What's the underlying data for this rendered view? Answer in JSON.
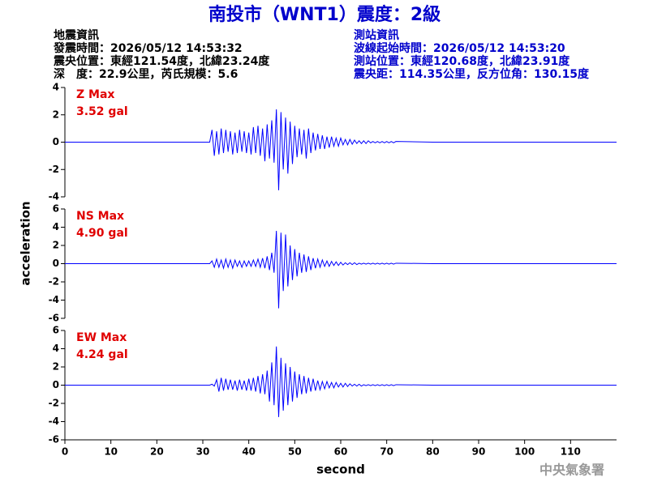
{
  "header": {
    "title": "南投市（WNT1）震度：2級",
    "left": [
      "地震資訊",
      "發震時間：2026/05/12 14:53:32",
      "震央位置：東經121.54度，北緯23.24度",
      "深　度：22.9公里，芮氏規模：5.6"
    ],
    "right": [
      "測站資訊",
      "波線起始時間：2026/05/12 14:53:20",
      "測站位置：東經120.68度，北緯23.91度",
      "震央距：114.35公里，反方位角：130.15度"
    ]
  },
  "footer": "中央氣象署",
  "chart_data": [
    {
      "type": "line",
      "label": "Z Max",
      "max_label": "3.52 gal",
      "color": "#0000ff",
      "xlim": [
        0,
        120
      ],
      "ylim": [
        -4,
        4
      ],
      "yticks": [
        -4,
        -2,
        0,
        2,
        4
      ],
      "x": [
        0,
        31.5,
        32,
        32.5,
        33,
        33.5,
        34,
        34.5,
        35,
        35.5,
        36,
        36.5,
        37,
        37.5,
        38,
        38.5,
        39,
        39.5,
        40,
        40.5,
        41,
        41.5,
        42,
        42.5,
        43,
        43.5,
        44,
        44.5,
        45,
        45.5,
        46,
        46.5,
        47,
        47.5,
        48,
        48.5,
        49,
        49.5,
        50,
        50.5,
        51,
        51.5,
        52,
        52.5,
        53,
        53.5,
        54,
        54.5,
        55,
        55.5,
        56,
        56.5,
        57,
        57.5,
        58,
        58.5,
        59,
        59.5,
        60,
        60.5,
        61,
        61.5,
        62,
        62.5,
        63,
        63.5,
        64,
        64.5,
        65,
        65.5,
        66,
        66.5,
        67,
        67.5,
        68,
        68.5,
        69,
        69.5,
        70,
        70.5,
        71,
        71.5,
        72,
        80,
        90,
        100,
        110,
        120
      ],
      "values": [
        0,
        0,
        0.9,
        -1.0,
        0.8,
        -0.9,
        1.0,
        -0.8,
        0.9,
        -0.7,
        0.8,
        -0.9,
        0.7,
        -0.8,
        0.9,
        -0.7,
        0.8,
        -0.8,
        0.7,
        -0.9,
        1.1,
        -0.8,
        1.2,
        -1.0,
        1.0,
        -1.4,
        1.3,
        -1.2,
        1.6,
        -1.5,
        2.4,
        -3.52,
        2.2,
        -2.0,
        1.8,
        -2.3,
        1.5,
        -1.6,
        1.2,
        -1.1,
        1.0,
        -0.9,
        0.9,
        -1.2,
        1.0,
        -0.8,
        0.7,
        -0.6,
        0.6,
        -0.5,
        0.5,
        -0.5,
        0.4,
        -0.4,
        0.4,
        -0.3,
        0.3,
        -0.3,
        0.3,
        -0.2,
        0.2,
        -0.2,
        0.2,
        -0.15,
        0.15,
        -0.1,
        0.1,
        -0.1,
        0.1,
        -0.1,
        0.1,
        -0.05,
        0.05,
        -0.05,
        0.05,
        -0.05,
        0.05,
        -0.05,
        0.05,
        -0.05,
        0.05,
        -0.05,
        0.05,
        0,
        0,
        0,
        0,
        0
      ]
    },
    {
      "type": "line",
      "label": "NS Max",
      "max_label": "4.90 gal",
      "color": "#0000ff",
      "ylabel": "acceleration",
      "xlim": [
        0,
        120
      ],
      "ylim": [
        -6,
        6
      ],
      "yticks": [
        -6,
        -4,
        -2,
        0,
        2,
        4,
        6
      ],
      "x": [
        0,
        31.5,
        32,
        32.5,
        33,
        33.5,
        34,
        34.5,
        35,
        35.5,
        36,
        36.5,
        37,
        37.5,
        38,
        38.5,
        39,
        39.5,
        40,
        40.5,
        41,
        41.5,
        42,
        42.5,
        43,
        43.5,
        44,
        44.5,
        45,
        45.5,
        46,
        46.5,
        47,
        47.5,
        48,
        48.5,
        49,
        49.5,
        50,
        50.5,
        51,
        51.5,
        52,
        52.5,
        53,
        53.5,
        54,
        54.5,
        55,
        55.5,
        56,
        56.5,
        57,
        57.5,
        58,
        58.5,
        59,
        59.5,
        60,
        60.5,
        61,
        61.5,
        62,
        62.5,
        63,
        63.5,
        64,
        64.5,
        65,
        65.5,
        66,
        66.5,
        67,
        67.5,
        68,
        68.5,
        69,
        69.5,
        70,
        70.5,
        71,
        71.5,
        72,
        80,
        90,
        100,
        110,
        120
      ],
      "values": [
        0,
        0,
        0.3,
        -0.4,
        0.5,
        -0.4,
        0.4,
        -0.5,
        0.5,
        -0.4,
        0.4,
        -0.5,
        0.4,
        -0.3,
        0.3,
        -0.4,
        0.3,
        -0.3,
        0.3,
        -0.3,
        0.4,
        -0.3,
        0.5,
        -0.4,
        0.6,
        -0.5,
        0.8,
        -0.7,
        1.2,
        -1.0,
        3.6,
        -4.9,
        3.4,
        -3.0,
        3.2,
        -2.5,
        2.0,
        -1.8,
        1.6,
        -1.4,
        1.2,
        -1.0,
        1.0,
        -0.9,
        0.8,
        -0.7,
        0.6,
        -0.5,
        0.5,
        -0.4,
        0.4,
        -0.3,
        0.3,
        -0.3,
        0.25,
        -0.2,
        0.2,
        -0.2,
        0.15,
        -0.15,
        0.1,
        -0.1,
        0.1,
        -0.1,
        0.1,
        -0.1,
        0.05,
        -0.05,
        0.05,
        -0.05,
        0.05,
        -0.05,
        0.05,
        -0.05,
        0.05,
        -0.05,
        0.05,
        -0.05,
        0.05,
        -0.05,
        0.05,
        -0.05,
        0.05,
        0,
        0,
        0,
        0,
        0
      ]
    },
    {
      "type": "line",
      "label": "EW Max",
      "max_label": "4.24 gal",
      "color": "#0000ff",
      "xlabel": "second",
      "xlim": [
        0,
        120
      ],
      "xticks": [
        0,
        10,
        20,
        30,
        40,
        50,
        60,
        70,
        80,
        90,
        100,
        110
      ],
      "ylim": [
        -6,
        6
      ],
      "yticks": [
        -6,
        -4,
        -2,
        0,
        2,
        4,
        6
      ],
      "x": [
        0,
        31.5,
        32,
        32.5,
        33,
        33.5,
        34,
        34.5,
        35,
        35.5,
        36,
        36.5,
        37,
        37.5,
        38,
        38.5,
        39,
        39.5,
        40,
        40.5,
        41,
        41.5,
        42,
        42.5,
        43,
        43.5,
        44,
        44.5,
        45,
        45.5,
        46,
        46.5,
        47,
        47.5,
        48,
        48.5,
        49,
        49.5,
        50,
        50.5,
        51,
        51.5,
        52,
        52.5,
        53,
        53.5,
        54,
        54.5,
        55,
        55.5,
        56,
        56.5,
        57,
        57.5,
        58,
        58.5,
        59,
        59.5,
        60,
        60.5,
        61,
        61.5,
        62,
        62.5,
        63,
        63.5,
        64,
        64.5,
        65,
        65.5,
        66,
        66.5,
        67,
        67.5,
        68,
        68.5,
        69,
        69.5,
        70,
        70.5,
        71,
        71.5,
        72,
        80,
        90,
        100,
        110,
        120
      ],
      "values": [
        0,
        0,
        0.1,
        -0.1,
        0.6,
        -0.7,
        0.8,
        -0.6,
        0.7,
        -0.5,
        0.6,
        -0.5,
        0.5,
        -0.6,
        0.6,
        -0.5,
        0.5,
        -0.6,
        0.7,
        -0.6,
        0.8,
        -0.7,
        1.0,
        -0.9,
        1.2,
        -1.0,
        1.6,
        -1.8,
        2.5,
        -2.2,
        4.24,
        -3.5,
        3.0,
        -2.8,
        2.4,
        -2.2,
        2.0,
        -1.8,
        1.5,
        -1.4,
        1.2,
        -1.0,
        1.0,
        -0.9,
        0.8,
        -0.7,
        0.7,
        -0.6,
        0.5,
        -0.5,
        0.4,
        -0.4,
        0.4,
        -0.3,
        0.3,
        -0.3,
        0.3,
        -0.2,
        0.2,
        -0.2,
        0.2,
        -0.15,
        0.15,
        -0.1,
        0.1,
        -0.1,
        0.1,
        -0.1,
        0.05,
        -0.05,
        0.05,
        -0.05,
        0.05,
        -0.05,
        0.05,
        -0.05,
        0.05,
        -0.05,
        0.05,
        -0.05,
        0.05,
        -0.05,
        0.05,
        0,
        0,
        0,
        0,
        0
      ]
    }
  ]
}
